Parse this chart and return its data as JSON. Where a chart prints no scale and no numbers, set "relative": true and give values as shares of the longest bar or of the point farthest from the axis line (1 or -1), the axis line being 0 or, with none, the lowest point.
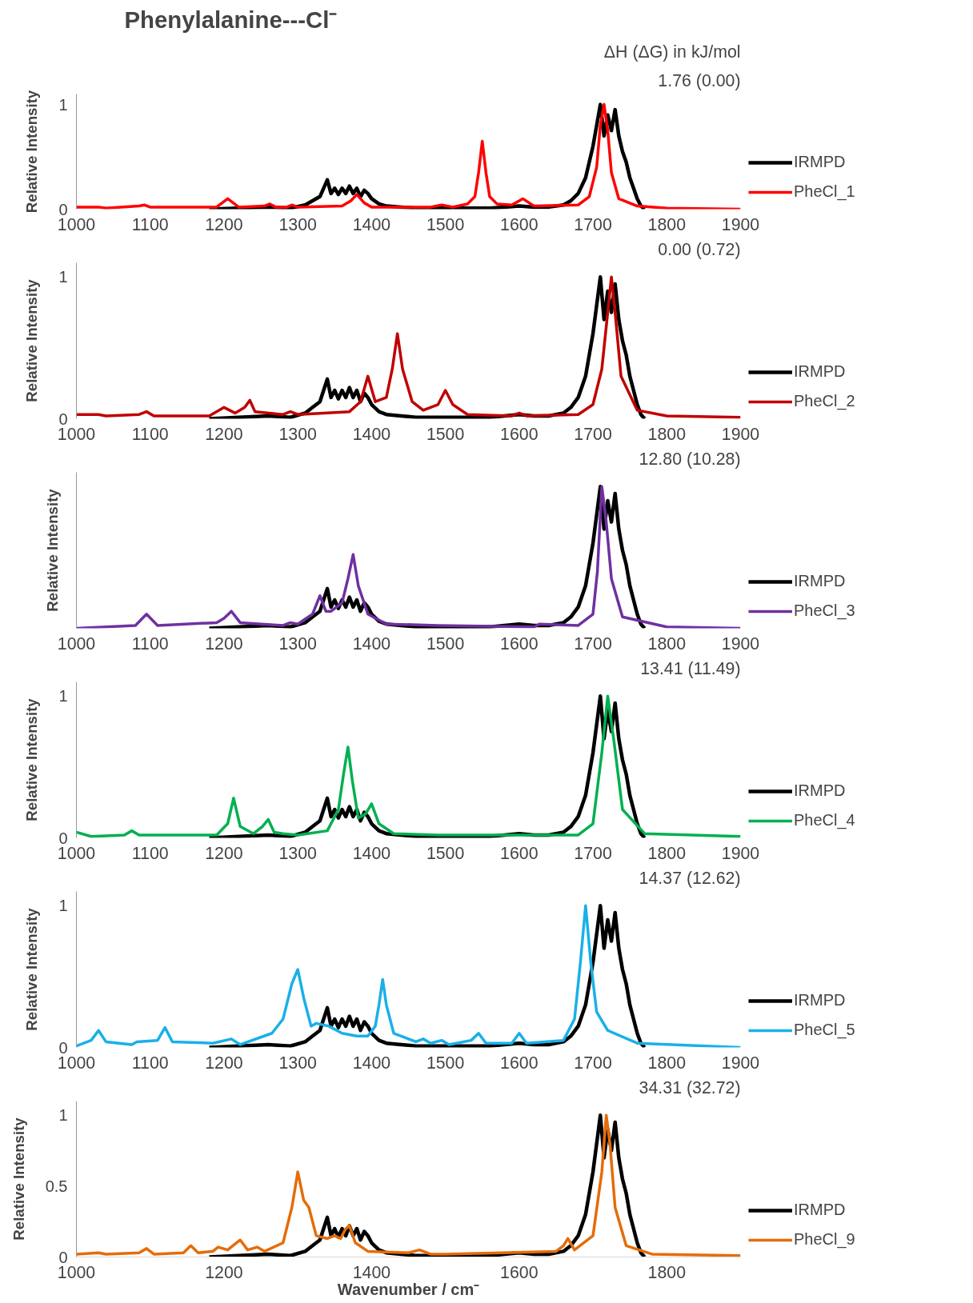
{
  "chart_data": [
    {
      "type": "line",
      "title": "Phenylalanine---Cl⁻",
      "ylabel": "Relative Intensity",
      "xlim": [
        1000,
        1900
      ],
      "xticks": [
        1000,
        1100,
        1200,
        1300,
        1400,
        1500,
        1600,
        1700,
        1800,
        1900
      ],
      "ylim": [
        0,
        1.1
      ],
      "yticks": [
        0,
        1
      ],
      "grid": false,
      "legend": "right",
      "annotations": [
        "ΔH (ΔG) in kJ/mol",
        "1.76 (0.00)"
      ],
      "series": [
        {
          "name": "IRMPD",
          "color": "#000000",
          "x": [
            1180,
            1220,
            1260,
            1290,
            1310,
            1320,
            1330,
            1335,
            1340,
            1345,
            1350,
            1355,
            1360,
            1365,
            1370,
            1375,
            1380,
            1385,
            1390,
            1395,
            1400,
            1410,
            1420,
            1440,
            1460,
            1500,
            1560,
            1580,
            1600,
            1620,
            1640,
            1660,
            1670,
            1680,
            1690,
            1700,
            1705,
            1710,
            1715,
            1720,
            1725,
            1730,
            1735,
            1740,
            1745,
            1750,
            1755,
            1760,
            1765,
            1770
          ],
          "values": [
            0,
            0.01,
            0.02,
            0.01,
            0.04,
            0.08,
            0.12,
            0.2,
            0.28,
            0.15,
            0.2,
            0.14,
            0.2,
            0.15,
            0.22,
            0.15,
            0.2,
            0.12,
            0.18,
            0.15,
            0.1,
            0.05,
            0.03,
            0.02,
            0.01,
            0.01,
            0.01,
            0.02,
            0.03,
            0.02,
            0.02,
            0.04,
            0.08,
            0.15,
            0.3,
            0.6,
            0.8,
            1.0,
            0.7,
            0.9,
            0.75,
            0.95,
            0.7,
            0.55,
            0.45,
            0.3,
            0.2,
            0.1,
            0.03,
            0
          ]
        },
        {
          "name": "PheCl_1",
          "color": "#ff0000",
          "x": [
            1000,
            1030,
            1040,
            1085,
            1092,
            1100,
            1190,
            1205,
            1220,
            1255,
            1262,
            1270,
            1285,
            1292,
            1300,
            1360,
            1372,
            1380,
            1390,
            1400,
            1480,
            1495,
            1510,
            1530,
            1540,
            1545,
            1550,
            1555,
            1560,
            1570,
            1590,
            1605,
            1620,
            1680,
            1695,
            1705,
            1710,
            1715,
            1720,
            1725,
            1735,
            1760,
            1800,
            1900
          ],
          "values": [
            0.02,
            0.02,
            0.01,
            0.03,
            0.04,
            0.02,
            0.02,
            0.1,
            0.02,
            0.03,
            0.05,
            0.02,
            0.02,
            0.04,
            0.02,
            0.03,
            0.08,
            0.14,
            0.06,
            0.02,
            0.02,
            0.04,
            0.02,
            0.05,
            0.12,
            0.35,
            0.65,
            0.35,
            0.12,
            0.05,
            0.04,
            0.1,
            0.03,
            0.04,
            0.12,
            0.4,
            0.8,
            1.0,
            0.75,
            0.35,
            0.1,
            0.03,
            0.01,
            0.0
          ]
        }
      ]
    },
    {
      "type": "line",
      "ylabel": "Relative Intensity",
      "xlim": [
        1000,
        1900
      ],
      "xticks": [
        1000,
        1100,
        1200,
        1300,
        1400,
        1500,
        1600,
        1700,
        1800,
        1900
      ],
      "ylim": [
        0,
        1.1
      ],
      "yticks": [
        0,
        1
      ],
      "grid": false,
      "legend": "right",
      "annotations": [
        "0.00 (0.72)"
      ],
      "series": [
        {
          "name": "IRMPD",
          "color": "#000000",
          "x": [
            1180,
            1220,
            1260,
            1290,
            1310,
            1320,
            1330,
            1335,
            1340,
            1345,
            1350,
            1355,
            1360,
            1365,
            1370,
            1375,
            1380,
            1385,
            1390,
            1395,
            1400,
            1410,
            1420,
            1440,
            1460,
            1500,
            1560,
            1580,
            1600,
            1620,
            1640,
            1660,
            1670,
            1680,
            1690,
            1700,
            1705,
            1710,
            1715,
            1720,
            1725,
            1730,
            1735,
            1740,
            1745,
            1750,
            1755,
            1760,
            1765,
            1770
          ],
          "values": [
            0,
            0.01,
            0.02,
            0.01,
            0.04,
            0.08,
            0.12,
            0.2,
            0.28,
            0.15,
            0.2,
            0.14,
            0.2,
            0.15,
            0.22,
            0.15,
            0.2,
            0.12,
            0.18,
            0.15,
            0.1,
            0.05,
            0.03,
            0.02,
            0.01,
            0.01,
            0.01,
            0.02,
            0.03,
            0.02,
            0.02,
            0.04,
            0.08,
            0.15,
            0.3,
            0.6,
            0.8,
            1.0,
            0.7,
            0.9,
            0.75,
            0.95,
            0.7,
            0.55,
            0.45,
            0.3,
            0.2,
            0.1,
            0.03,
            0
          ]
        },
        {
          "name": "PheCl_2",
          "color": "#c00000",
          "x": [
            1000,
            1030,
            1040,
            1085,
            1095,
            1105,
            1180,
            1200,
            1215,
            1228,
            1235,
            1242,
            1280,
            1290,
            1300,
            1370,
            1385,
            1395,
            1405,
            1420,
            1428,
            1435,
            1442,
            1455,
            1470,
            1490,
            1500,
            1510,
            1530,
            1590,
            1600,
            1610,
            1680,
            1700,
            1712,
            1720,
            1725,
            1730,
            1738,
            1760,
            1800,
            1900
          ],
          "values": [
            0.03,
            0.03,
            0.02,
            0.03,
            0.05,
            0.02,
            0.02,
            0.08,
            0.04,
            0.08,
            0.13,
            0.05,
            0.03,
            0.05,
            0.03,
            0.05,
            0.12,
            0.3,
            0.12,
            0.15,
            0.35,
            0.6,
            0.35,
            0.12,
            0.06,
            0.1,
            0.2,
            0.1,
            0.03,
            0.02,
            0.04,
            0.02,
            0.03,
            0.1,
            0.35,
            0.75,
            1.0,
            0.75,
            0.3,
            0.06,
            0.02,
            0.01
          ]
        }
      ]
    },
    {
      "type": "line",
      "ylabel": "Relative Intensity",
      "relative": true,
      "xlim": [
        1000,
        1900
      ],
      "xticks": [
        1000,
        1100,
        1200,
        1300,
        1400,
        1500,
        1600,
        1700,
        1800,
        1900
      ],
      "grid": false,
      "legend": "right",
      "annotations": [
        "12.80 (10.28)"
      ],
      "series": [
        {
          "name": "IRMPD",
          "color": "#000000",
          "x": [
            1180,
            1220,
            1260,
            1290,
            1310,
            1320,
            1330,
            1335,
            1340,
            1345,
            1350,
            1355,
            1360,
            1365,
            1370,
            1375,
            1380,
            1385,
            1390,
            1395,
            1400,
            1410,
            1420,
            1440,
            1460,
            1500,
            1560,
            1580,
            1600,
            1620,
            1640,
            1660,
            1670,
            1680,
            1690,
            1700,
            1705,
            1710,
            1715,
            1720,
            1725,
            1730,
            1735,
            1740,
            1745,
            1750,
            1755,
            1760,
            1765,
            1770
          ],
          "values": [
            0,
            0.01,
            0.02,
            0.01,
            0.04,
            0.08,
            0.12,
            0.2,
            0.28,
            0.15,
            0.2,
            0.14,
            0.2,
            0.15,
            0.22,
            0.15,
            0.2,
            0.12,
            0.18,
            0.15,
            0.1,
            0.05,
            0.03,
            0.02,
            0.01,
            0.01,
            0.01,
            0.02,
            0.03,
            0.02,
            0.02,
            0.04,
            0.08,
            0.15,
            0.3,
            0.6,
            0.8,
            1.0,
            0.7,
            0.9,
            0.75,
            0.95,
            0.7,
            0.55,
            0.45,
            0.3,
            0.2,
            0.1,
            0.03,
            0
          ]
        },
        {
          "name": "PheCl_3",
          "color": "#7030a0",
          "x": [
            1000,
            1080,
            1095,
            1110,
            1190,
            1200,
            1210,
            1222,
            1280,
            1290,
            1300,
            1320,
            1330,
            1338,
            1345,
            1360,
            1368,
            1375,
            1382,
            1395,
            1420,
            1490,
            1620,
            1628,
            1680,
            1700,
            1706,
            1712,
            1718,
            1725,
            1740,
            1800,
            1900
          ],
          "values": [
            0,
            0.02,
            0.1,
            0.02,
            0.04,
            0.07,
            0.12,
            0.04,
            0.02,
            0.04,
            0.03,
            0.1,
            0.23,
            0.12,
            0.12,
            0.18,
            0.35,
            0.52,
            0.3,
            0.1,
            0.03,
            0.02,
            0.01,
            0.03,
            0.02,
            0.1,
            0.4,
            1.0,
            0.75,
            0.35,
            0.08,
            0.01,
            0
          ]
        }
      ]
    },
    {
      "type": "line",
      "ylabel": "Relative Intensity",
      "xlim": [
        1000,
        1900
      ],
      "xticks": [
        1000,
        1100,
        1200,
        1300,
        1400,
        1500,
        1600,
        1700,
        1800,
        1900
      ],
      "ylim": [
        0,
        1.1
      ],
      "yticks": [
        0,
        1
      ],
      "grid": false,
      "legend": "right",
      "annotations": [
        "13.41 (11.49)"
      ],
      "series": [
        {
          "name": "IRMPD",
          "color": "#000000",
          "x": [
            1180,
            1220,
            1260,
            1290,
            1310,
            1320,
            1330,
            1335,
            1340,
            1345,
            1350,
            1355,
            1360,
            1365,
            1370,
            1375,
            1380,
            1385,
            1390,
            1395,
            1400,
            1410,
            1420,
            1440,
            1460,
            1500,
            1560,
            1580,
            1600,
            1620,
            1640,
            1660,
            1670,
            1680,
            1690,
            1700,
            1705,
            1710,
            1715,
            1720,
            1725,
            1730,
            1735,
            1740,
            1745,
            1750,
            1755,
            1760,
            1765,
            1770
          ],
          "values": [
            0,
            0.01,
            0.02,
            0.01,
            0.04,
            0.08,
            0.12,
            0.2,
            0.28,
            0.15,
            0.2,
            0.14,
            0.2,
            0.15,
            0.22,
            0.15,
            0.2,
            0.12,
            0.18,
            0.15,
            0.1,
            0.05,
            0.03,
            0.02,
            0.01,
            0.01,
            0.01,
            0.02,
            0.03,
            0.02,
            0.02,
            0.04,
            0.08,
            0.15,
            0.3,
            0.6,
            0.8,
            1.0,
            0.7,
            0.9,
            0.75,
            0.95,
            0.7,
            0.55,
            0.45,
            0.3,
            0.2,
            0.1,
            0.03,
            0
          ]
        },
        {
          "name": "PheCl_4",
          "color": "#00b050",
          "x": [
            1000,
            1020,
            1065,
            1075,
            1085,
            1190,
            1205,
            1213,
            1222,
            1240,
            1252,
            1260,
            1268,
            1280,
            1300,
            1340,
            1355,
            1362,
            1368,
            1374,
            1382,
            1392,
            1400,
            1410,
            1430,
            1490,
            1600,
            1680,
            1700,
            1712,
            1720,
            1728,
            1740,
            1770,
            1900
          ],
          "values": [
            0.04,
            0.01,
            0.02,
            0.05,
            0.02,
            0.02,
            0.1,
            0.28,
            0.08,
            0.03,
            0.08,
            0.13,
            0.04,
            0.03,
            0.02,
            0.05,
            0.2,
            0.45,
            0.64,
            0.4,
            0.14,
            0.17,
            0.24,
            0.1,
            0.03,
            0.02,
            0.02,
            0.02,
            0.1,
            0.6,
            1.0,
            0.7,
            0.2,
            0.03,
            0.01
          ]
        }
      ]
    },
    {
      "type": "line",
      "ylabel": "Relative Intensity",
      "xlim": [
        1000,
        1900
      ],
      "xticks": [
        1000,
        1100,
        1200,
        1300,
        1400,
        1500,
        1600,
        1700,
        1800,
        1900
      ],
      "ylim": [
        0,
        1.1
      ],
      "yticks": [
        0,
        1
      ],
      "grid": false,
      "legend": "right",
      "annotations": [
        "14.37 (12.62)"
      ],
      "series": [
        {
          "name": "IRMPD",
          "color": "#000000",
          "x": [
            1180,
            1220,
            1260,
            1290,
            1310,
            1320,
            1330,
            1335,
            1340,
            1345,
            1350,
            1355,
            1360,
            1365,
            1370,
            1375,
            1380,
            1385,
            1390,
            1395,
            1400,
            1410,
            1420,
            1440,
            1460,
            1500,
            1560,
            1580,
            1600,
            1620,
            1640,
            1660,
            1670,
            1680,
            1690,
            1700,
            1705,
            1710,
            1715,
            1720,
            1725,
            1730,
            1735,
            1740,
            1745,
            1750,
            1755,
            1760,
            1765,
            1770
          ],
          "values": [
            0,
            0.01,
            0.02,
            0.01,
            0.04,
            0.08,
            0.12,
            0.2,
            0.28,
            0.15,
            0.2,
            0.14,
            0.2,
            0.15,
            0.22,
            0.15,
            0.2,
            0.12,
            0.18,
            0.15,
            0.1,
            0.05,
            0.03,
            0.02,
            0.01,
            0.01,
            0.01,
            0.02,
            0.03,
            0.02,
            0.02,
            0.04,
            0.08,
            0.15,
            0.3,
            0.6,
            0.8,
            1.0,
            0.7,
            0.9,
            0.75,
            0.95,
            0.7,
            0.55,
            0.45,
            0.3,
            0.2,
            0.1,
            0.03,
            0
          ]
        },
        {
          "name": "PheCl_5",
          "color": "#1ab0e8",
          "x": [
            1000,
            1020,
            1030,
            1040,
            1075,
            1082,
            1110,
            1120,
            1130,
            1185,
            1210,
            1222,
            1265,
            1280,
            1292,
            1300,
            1308,
            1318,
            1325,
            1342,
            1360,
            1380,
            1395,
            1405,
            1410,
            1415,
            1420,
            1430,
            1460,
            1470,
            1480,
            1495,
            1505,
            1535,
            1545,
            1555,
            1590,
            1600,
            1610,
            1660,
            1675,
            1683,
            1690,
            1697,
            1705,
            1720,
            1760,
            1900
          ],
          "values": [
            0.01,
            0.05,
            0.12,
            0.04,
            0.02,
            0.04,
            0.05,
            0.14,
            0.04,
            0.03,
            0.06,
            0.02,
            0.1,
            0.2,
            0.45,
            0.55,
            0.35,
            0.15,
            0.17,
            0.15,
            0.1,
            0.08,
            0.08,
            0.15,
            0.3,
            0.48,
            0.3,
            0.1,
            0.04,
            0.06,
            0.03,
            0.05,
            0.02,
            0.05,
            0.1,
            0.03,
            0.03,
            0.1,
            0.03,
            0.05,
            0.2,
            0.6,
            1.0,
            0.6,
            0.25,
            0.12,
            0.03,
            0
          ]
        }
      ]
    },
    {
      "type": "line",
      "ylabel": "Relative Intensity",
      "xlabel": "Wavenumber / cm⁻",
      "xlim": [
        1000,
        1900
      ],
      "xticks": [
        1000,
        1200,
        1400,
        1600,
        1800
      ],
      "ylim": [
        0,
        1.1
      ],
      "yticks": [
        0,
        0.5,
        1
      ],
      "grid": false,
      "legend": "right",
      "annotations": [
        "34.31 (32.72)"
      ],
      "series": [
        {
          "name": "IRMPD",
          "color": "#000000",
          "x": [
            1180,
            1220,
            1260,
            1290,
            1310,
            1320,
            1330,
            1335,
            1340,
            1345,
            1350,
            1355,
            1360,
            1365,
            1370,
            1375,
            1380,
            1385,
            1390,
            1395,
            1400,
            1410,
            1420,
            1440,
            1460,
            1500,
            1560,
            1580,
            1600,
            1620,
            1640,
            1660,
            1670,
            1680,
            1690,
            1700,
            1705,
            1710,
            1715,
            1720,
            1725,
            1730,
            1735,
            1740,
            1745,
            1750,
            1755,
            1760,
            1765,
            1770
          ],
          "values": [
            0,
            0.01,
            0.02,
            0.01,
            0.04,
            0.08,
            0.12,
            0.2,
            0.28,
            0.15,
            0.2,
            0.14,
            0.2,
            0.15,
            0.22,
            0.15,
            0.2,
            0.12,
            0.18,
            0.15,
            0.1,
            0.05,
            0.03,
            0.02,
            0.01,
            0.01,
            0.01,
            0.02,
            0.03,
            0.02,
            0.02,
            0.04,
            0.08,
            0.15,
            0.3,
            0.6,
            0.8,
            1.0,
            0.7,
            0.9,
            0.75,
            0.95,
            0.7,
            0.55,
            0.45,
            0.3,
            0.2,
            0.1,
            0.03,
            0
          ]
        },
        {
          "name": "PheCl_9",
          "color": "#e46c0a",
          "x": [
            1000,
            1030,
            1040,
            1085,
            1095,
            1105,
            1145,
            1155,
            1165,
            1185,
            1192,
            1205,
            1212,
            1222,
            1232,
            1245,
            1255,
            1280,
            1292,
            1300,
            1308,
            1315,
            1325,
            1340,
            1350,
            1358,
            1365,
            1370,
            1378,
            1395,
            1450,
            1465,
            1480,
            1500,
            1650,
            1660,
            1666,
            1675,
            1700,
            1712,
            1718,
            1723,
            1730,
            1745,
            1780,
            1900
          ],
          "values": [
            0.02,
            0.03,
            0.02,
            0.03,
            0.06,
            0.02,
            0.03,
            0.08,
            0.03,
            0.04,
            0.07,
            0.05,
            0.08,
            0.12,
            0.05,
            0.07,
            0.04,
            0.1,
            0.35,
            0.6,
            0.4,
            0.35,
            0.15,
            0.13,
            0.15,
            0.13,
            0.2,
            0.22,
            0.1,
            0.04,
            0.03,
            0.05,
            0.02,
            0.02,
            0.04,
            0.08,
            0.13,
            0.05,
            0.15,
            0.6,
            1.0,
            0.8,
            0.35,
            0.08,
            0.02,
            0.01
          ]
        }
      ]
    }
  ]
}
